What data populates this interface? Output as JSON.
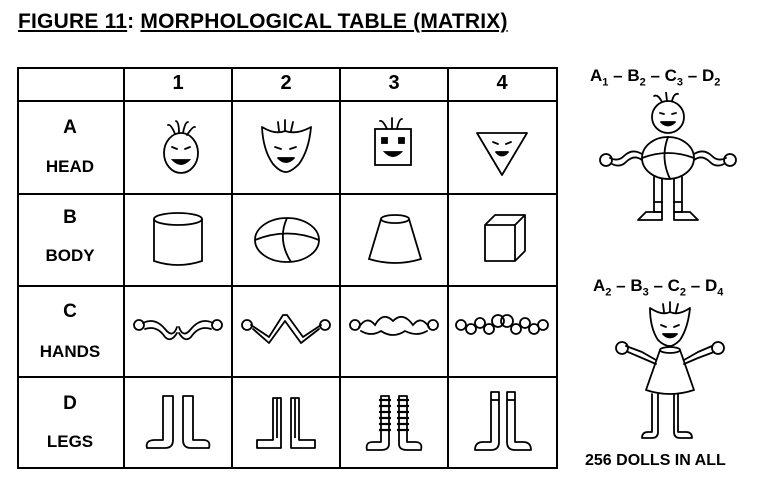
{
  "title": {
    "figure": "FIGURE 11",
    "separator": ":",
    "name": "MORPHOLOGICAL TABLE (MATRIX)"
  },
  "table": {
    "columns": [
      "1",
      "2",
      "3",
      "4"
    ],
    "rows": [
      {
        "letter": "A",
        "name": "HEAD",
        "variants": [
          "round-face",
          "pointed-face",
          "square-face",
          "triangle-face"
        ]
      },
      {
        "letter": "B",
        "name": "BODY",
        "variants": [
          "cylinder",
          "ball",
          "cone",
          "cube"
        ]
      },
      {
        "letter": "C",
        "name": "HANDS",
        "variants": [
          "curved-arms",
          "zigzag-arms",
          "bumpy-arms",
          "bead-arms"
        ]
      },
      {
        "letter": "D",
        "name": "LEGS",
        "variants": [
          "plain-boots",
          "square-boots",
          "striped-boots",
          "tall-boots"
        ]
      }
    ]
  },
  "examples": [
    {
      "combo": [
        [
          "A",
          "1"
        ],
        [
          "B",
          "2"
        ],
        [
          "C",
          "3"
        ],
        [
          "D",
          "2"
        ]
      ]
    },
    {
      "combo": [
        [
          "A",
          "2"
        ],
        [
          "B",
          "3"
        ],
        [
          "C",
          "2"
        ],
        [
          "D",
          "4"
        ]
      ]
    }
  ],
  "footer": "256 DOLLS IN ALL"
}
